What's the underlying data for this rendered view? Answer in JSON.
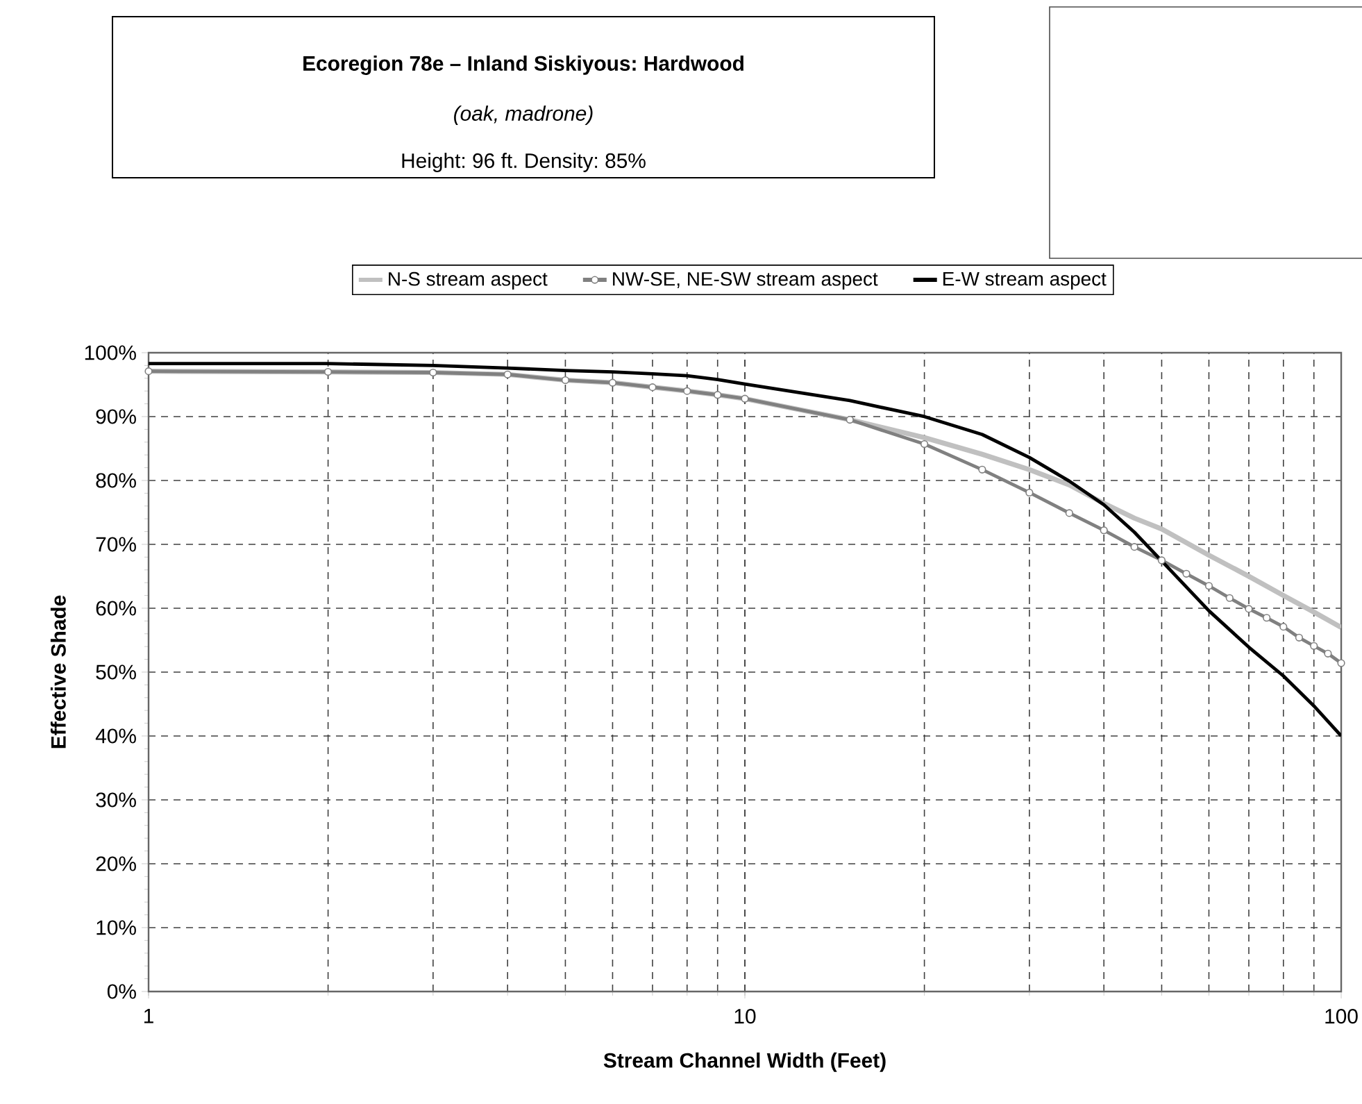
{
  "chart_data": {
    "type": "line",
    "title": "Ecoregion 78e – Inland Siskiyous: Hardwood",
    "subtitle": "(oak, madrone)",
    "annotations": [
      "Height: 96 ft.  Density: 85%"
    ],
    "xlabel": "Stream Channel Width (Feet)",
    "ylabel": "Effective Shade",
    "log": "x",
    "xlim": [
      1,
      100
    ],
    "xticks": [
      1,
      10,
      100
    ],
    "ylim": [
      0,
      100
    ],
    "yticks": [
      {
        "value": 0,
        "label": "0%"
      },
      {
        "value": 10,
        "label": "10%"
      },
      {
        "value": 20,
        "label": "20%"
      },
      {
        "value": 30,
        "label": "30%"
      },
      {
        "value": 40,
        "label": "40%"
      },
      {
        "value": 50,
        "label": "50%"
      },
      {
        "value": 60,
        "label": "60%"
      },
      {
        "value": 70,
        "label": "70%"
      },
      {
        "value": 80,
        "label": "80%"
      },
      {
        "value": 90,
        "label": "90%"
      },
      {
        "value": 100,
        "label": "100%"
      }
    ],
    "grid": true,
    "legend": "top",
    "line_style": "solid",
    "series": [
      {
        "name": "N-S stream aspect",
        "color": "#c0c0c0",
        "marker": "none",
        "x": [
          1,
          2,
          3,
          4,
          5,
          6,
          7,
          8,
          9,
          10,
          15,
          20,
          25,
          30,
          35,
          40,
          45,
          50,
          60,
          70,
          80,
          90,
          100
        ],
        "values": [
          97.1,
          97.0,
          96.9,
          96.6,
          95.7,
          95.3,
          94.6,
          94.0,
          93.4,
          92.8,
          89.5,
          86.7,
          84.1,
          81.7,
          79.3,
          76.4,
          74.1,
          72.4,
          68.3,
          65.0,
          62.0,
          59.4,
          57.0
        ]
      },
      {
        "name": "NW-SE, NE-SW stream aspect",
        "color": "#808080",
        "marker": "circle",
        "x": [
          1,
          2,
          3,
          4,
          5,
          6,
          7,
          8,
          9,
          10,
          15,
          20,
          25,
          30,
          35,
          40,
          45,
          50,
          55,
          60,
          65,
          70,
          75,
          80,
          85,
          90,
          95,
          100
        ],
        "values": [
          97.1,
          97.0,
          96.9,
          96.6,
          95.7,
          95.3,
          94.6,
          94.0,
          93.4,
          92.8,
          89.5,
          85.7,
          81.7,
          78.1,
          74.9,
          72.2,
          69.6,
          67.5,
          65.4,
          63.5,
          61.6,
          59.9,
          58.5,
          57.1,
          55.4,
          54.1,
          52.9,
          51.4
        ]
      },
      {
        "name": "E-W stream aspect",
        "color": "#000000",
        "marker": "none",
        "x": [
          1,
          2,
          3,
          4,
          5,
          6,
          7,
          8,
          9,
          10,
          15,
          20,
          25,
          30,
          35,
          40,
          45,
          50,
          60,
          70,
          80,
          90,
          100
        ],
        "values": [
          98.3,
          98.3,
          98.0,
          97.6,
          97.2,
          97.0,
          96.7,
          96.4,
          95.8,
          95.1,
          92.5,
          90.0,
          87.2,
          83.6,
          79.9,
          76.2,
          71.9,
          67.4,
          59.6,
          53.9,
          49.4,
          44.7,
          40.0
        ]
      }
    ]
  }
}
